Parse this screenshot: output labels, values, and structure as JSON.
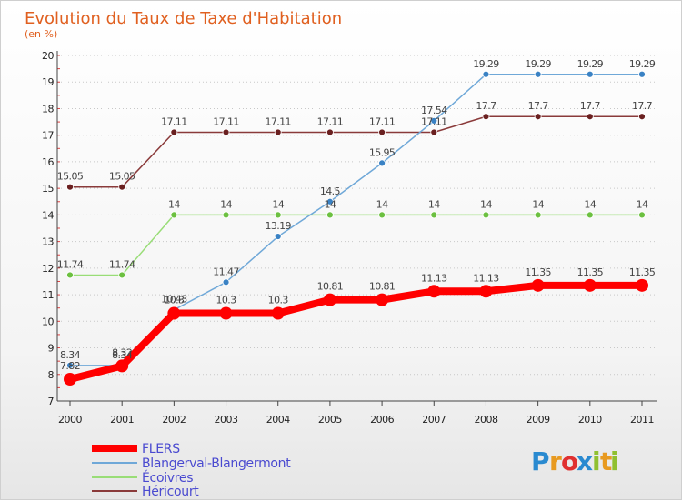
{
  "chart_data": {
    "type": "line",
    "title": "Evolution du Taux de Taxe d'Habitation",
    "subtitle": "(en %)",
    "x": [
      "2000",
      "2001",
      "2002",
      "2003",
      "2004",
      "2005",
      "2006",
      "2007",
      "2008",
      "2009",
      "2010",
      "2011"
    ],
    "ylim": [
      7,
      20
    ],
    "yticks": [
      7,
      8,
      9,
      10,
      11,
      12,
      13,
      14,
      15,
      16,
      17,
      18,
      19,
      20
    ],
    "grid": "horizontal",
    "legend_position": "bottom-left",
    "series": [
      {
        "name": "FLERS",
        "color": "#ff0000",
        "width": 8,
        "marker": 7,
        "values": [
          7.82,
          8.32,
          10.3,
          10.3,
          10.3,
          10.81,
          10.81,
          11.13,
          11.13,
          11.35,
          11.35,
          11.35
        ],
        "labels": [
          "7.82",
          "8.32",
          "10.3",
          "10.3",
          "10.3",
          "10.81",
          "10.81",
          "11.13",
          "11.13",
          "11.35",
          "11.35",
          "11.35"
        ]
      },
      {
        "name": "Blangerval-Blangermont",
        "color": "#6fa8d8",
        "marker_color": "#3a82c4",
        "width": 1.5,
        "marker": 3.5,
        "values": [
          8.34,
          8.34,
          10.43,
          11.47,
          13.19,
          14.5,
          15.95,
          17.54,
          19.29,
          19.29,
          19.29,
          19.29
        ],
        "labels": [
          "8.34",
          "8.34",
          "10.43",
          "11.47",
          "13.19",
          "14.5",
          "15.95",
          "17.54",
          "19.29",
          "19.29",
          "19.29",
          "19.29"
        ]
      },
      {
        "name": "Écoivres",
        "color": "#99dd77",
        "marker_color": "#6cc040",
        "width": 1.5,
        "marker": 3.5,
        "values": [
          11.74,
          11.74,
          14,
          14,
          14,
          14,
          14,
          14,
          14,
          14,
          14,
          14
        ],
        "labels": [
          "11.74",
          "11.74",
          "14",
          "14",
          "14",
          "14",
          "14",
          "14",
          "14",
          "14",
          "14",
          "14"
        ]
      },
      {
        "name": "Héricourt",
        "color": "#8a3a3a",
        "marker_color": "#6a2020",
        "width": 1.5,
        "marker": 3.5,
        "values": [
          15.05,
          15.05,
          17.11,
          17.11,
          17.11,
          17.11,
          17.11,
          17.11,
          17.7,
          17.7,
          17.7,
          17.7
        ],
        "labels": [
          "15.05",
          "15.05",
          "17.11",
          "17.11",
          "17.11",
          "17.11",
          "17.11",
          "17.11",
          "17.7",
          "17.7",
          "17.7",
          "17.7"
        ]
      }
    ]
  },
  "logo": {
    "letters": [
      "P",
      "r",
      "o",
      "x",
      "i",
      "t",
      "i"
    ],
    "colors": [
      "#2a8ad0",
      "#e89a20",
      "#e03030",
      "#2a8ad0",
      "#90c030",
      "#e89a20",
      "#90c030"
    ]
  }
}
